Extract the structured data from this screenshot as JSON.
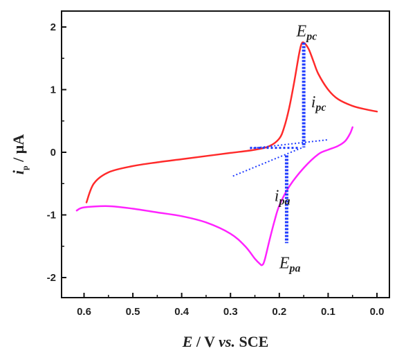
{
  "chart_data": {
    "type": "line",
    "xlabel": {
      "var": "E",
      "rest": " / V ",
      "vs": "vs.",
      "ref": " SCE"
    },
    "ylabel": {
      "var": "i",
      "sub": "p",
      "rest": " / μA"
    },
    "xlim": [
      0.62,
      0.0
    ],
    "ylim": [
      -2.2,
      2.2
    ],
    "xticks": [
      "0.6",
      "0.5",
      "0.4",
      "0.3",
      "0.2",
      "0.1",
      "0.0"
    ],
    "yticks": [
      "-2",
      "-1",
      "0",
      "1",
      "2"
    ],
    "grid": false,
    "series": [
      {
        "color": "#ff2a2a",
        "x": [
          0.595,
          0.58,
          0.55,
          0.5,
          0.45,
          0.4,
          0.35,
          0.3,
          0.25,
          0.22,
          0.2,
          0.19,
          0.18,
          0.17,
          0.16,
          0.155,
          0.15,
          0.14,
          0.13,
          0.12,
          0.1,
          0.08,
          0.05,
          0.02,
          0.0
        ],
        "y": [
          -0.8,
          -0.5,
          -0.32,
          -0.22,
          -0.16,
          -0.11,
          -0.06,
          -0.01,
          0.04,
          0.1,
          0.22,
          0.4,
          0.7,
          1.1,
          1.55,
          1.72,
          1.75,
          1.65,
          1.45,
          1.25,
          1.0,
          0.85,
          0.74,
          0.68,
          0.65
        ]
      },
      {
        "color": "#ff22ff",
        "x": [
          0.615,
          0.6,
          0.55,
          0.5,
          0.45,
          0.4,
          0.35,
          0.3,
          0.27,
          0.25,
          0.24,
          0.235,
          0.23,
          0.22,
          0.21,
          0.2,
          0.18,
          0.15,
          0.12,
          0.1,
          0.08,
          0.065,
          0.055,
          0.05
        ],
        "y": [
          -0.93,
          -0.88,
          -0.86,
          -0.9,
          -0.96,
          -1.02,
          -1.12,
          -1.3,
          -1.5,
          -1.7,
          -1.78,
          -1.8,
          -1.72,
          -1.4,
          -1.1,
          -0.85,
          -0.55,
          -0.25,
          -0.03,
          0.04,
          0.1,
          0.18,
          0.3,
          0.4
        ]
      }
    ],
    "annotations": {
      "epc": {
        "main": "E",
        "sub": "pc"
      },
      "ipc": {
        "main": "i",
        "sub": "pc"
      },
      "ipa": {
        "main": "i",
        "sub": "pa"
      },
      "epa": {
        "main": "E",
        "sub": "pa"
      }
    },
    "guides": {
      "color": "#1f3bff",
      "cathodic_peak": {
        "x": 0.15,
        "y_top": 1.75,
        "y_base": 0.08
      },
      "anodic_peak": {
        "x": 0.185,
        "y_top": -0.05,
        "y_bottom": -1.45
      },
      "cathodic_baseline": {
        "x1": 0.26,
        "y1": 0.06,
        "x2": 0.1,
        "y2": 0.2
      },
      "anodic_baseline": {
        "x1": 0.295,
        "y1": -0.38,
        "x2": 0.145,
        "y2": 0.1
      },
      "peak_baseline": {
        "x1": 0.26,
        "y1": 0.07,
        "x2": 0.16,
        "y2": 0.07
      }
    }
  }
}
